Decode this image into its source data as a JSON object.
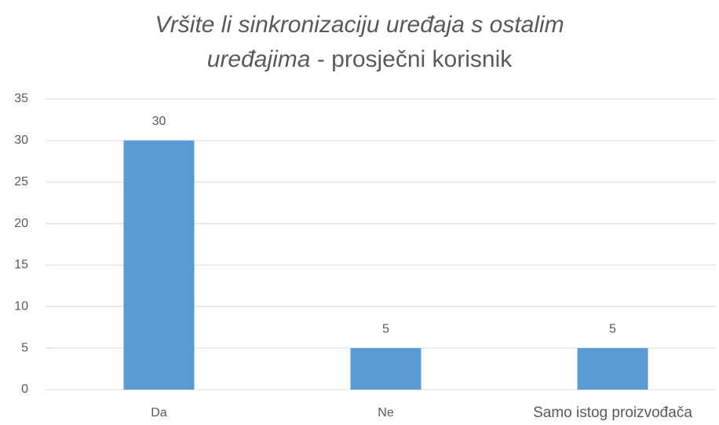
{
  "chart_data": {
    "type": "bar",
    "title": {
      "italic": "Vršite li sinkronizaciju uređaja s ostalim uređajima",
      "normal": "- prosječni korisnik"
    },
    "categories": [
      "Da",
      "Ne",
      "Samo istog proizvođača"
    ],
    "values": [
      30,
      5,
      5
    ],
    "color": "#5b9bd5",
    "ylim": [
      0,
      35
    ],
    "yticks": [
      0,
      5,
      10,
      15,
      20,
      25,
      30,
      35
    ],
    "grid": true
  }
}
